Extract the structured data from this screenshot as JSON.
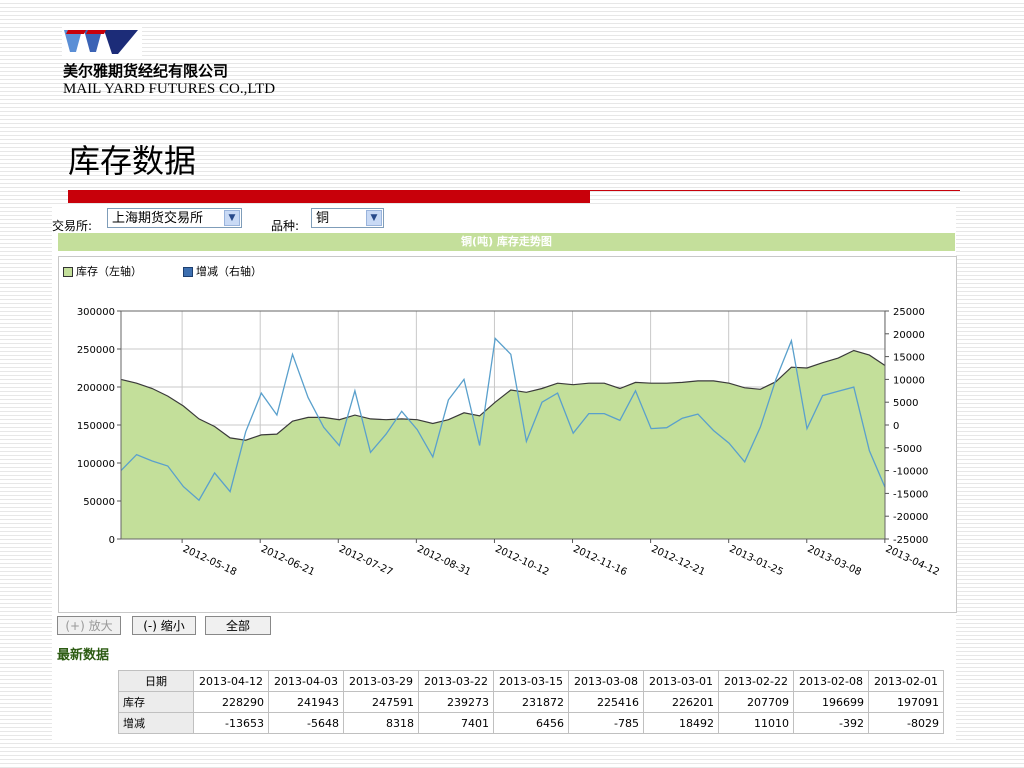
{
  "company": {
    "name_cn": "美尔雅期货经纪有限公司",
    "name_en": "MAIL YARD FUTURES CO.,LTD"
  },
  "slide": {
    "title": "库存数据"
  },
  "selectors": {
    "exchange_label": "交易所:",
    "exchange_value": "上海期货交易所",
    "variety_label": "品种:",
    "variety_value": "铜"
  },
  "chart_header": "铜(吨) 库存走势图",
  "legend": {
    "inventory": "库存（左轴）",
    "change": "增减（右轴）"
  },
  "buttons": {
    "zoom_in": "(+) 放大",
    "zoom_out": "(-) 缩小",
    "all": "全部"
  },
  "latest": {
    "title": "最新数据",
    "row_labels": {
      "date": "日期",
      "inventory": "库存",
      "change": "增减"
    },
    "dates": [
      "2013-04-12",
      "2013-04-03",
      "2013-03-29",
      "2013-03-22",
      "2013-03-15",
      "2013-03-08",
      "2013-03-01",
      "2013-02-22",
      "2013-02-08",
      "2013-02-01"
    ],
    "inventory": [
      "228290",
      "241943",
      "247591",
      "239273",
      "231872",
      "225416",
      "226201",
      "207709",
      "196699",
      "197091"
    ],
    "change": [
      "-13653",
      "-5648",
      "8318",
      "7401",
      "6456",
      "-785",
      "18492",
      "11010",
      "-392",
      "-8029"
    ]
  },
  "colors": {
    "area_fill": "#c3df9a",
    "area_line": "#3a3a3a",
    "change_line": "#5aa0cc",
    "grid": "#c8c8c8"
  },
  "chart_data": {
    "type": "area",
    "title": "铜(吨) 库存走势图",
    "x_tick_labels": [
      "2012-05-18",
      "2012-06-21",
      "2012-07-27",
      "2012-08-31",
      "2012-10-12",
      "2012-11-16",
      "2012-12-21",
      "2013-01-25",
      "2013-03-08",
      "2013-04-12"
    ],
    "y_left": {
      "ticks": [
        "0",
        "50000",
        "100000",
        "150000",
        "200000",
        "250000",
        "300000"
      ],
      "range": [
        0,
        300000
      ]
    },
    "y_right": {
      "ticks": [
        "-25000",
        "-20000",
        "-15000",
        "-10000",
        "-5000",
        "0",
        "5000",
        "10000",
        "15000",
        "20000",
        "25000"
      ],
      "range": [
        -25000,
        25000
      ]
    },
    "grid": true,
    "legend_position": "top-left",
    "series": [
      {
        "name": "库存（左轴）",
        "axis": "left",
        "type": "area",
        "values": [
          210000,
          205000,
          198000,
          188000,
          175000,
          158000,
          148000,
          133000,
          130000,
          137000,
          138000,
          155000,
          160000,
          160000,
          157000,
          163000,
          158000,
          157000,
          158000,
          157000,
          152000,
          157000,
          166000,
          162000,
          180000,
          196000,
          193000,
          198000,
          205000,
          203000,
          205000,
          205000,
          198000,
          206000,
          205000,
          205000,
          206000,
          208000,
          208000,
          205000,
          199000,
          197000,
          207000,
          226000,
          225000,
          232000,
          238000,
          248000,
          242000,
          228290
        ]
      },
      {
        "name": "增减（右轴）",
        "axis": "right",
        "type": "line",
        "values": [
          -10000,
          -6500,
          -7900,
          -9000,
          -13500,
          -16500,
          -10500,
          -14600,
          -1500,
          7000,
          2200,
          15500,
          6000,
          -500,
          -4500,
          7500,
          -6000,
          -2000,
          3000,
          -1000,
          -7000,
          5500,
          10000,
          -4500,
          19000,
          15500,
          -3600,
          5000,
          7000,
          -1800,
          2500,
          2500,
          1000,
          7500,
          -800,
          -600,
          1500,
          2400,
          -1200,
          -4000,
          -8100,
          -500,
          10000,
          18492,
          -785,
          6456,
          7401,
          8318,
          -5648,
          -13653
        ]
      }
    ]
  }
}
